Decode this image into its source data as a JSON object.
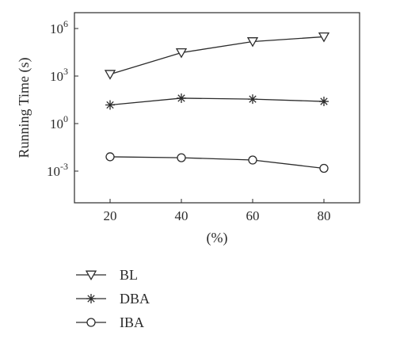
{
  "chart_data": {
    "type": "line",
    "xlabel": "(%)",
    "ylabel": "Running Time (s)",
    "x": [
      20,
      40,
      60,
      80
    ],
    "xticks": [
      "20",
      "40",
      "60",
      "80"
    ],
    "xlim": [
      10,
      90
    ],
    "yscale": "log",
    "ylim": [
      1e-05,
      10000000
    ],
    "yticks": [
      {
        "value": 0.001,
        "base": "10",
        "exp": "-3"
      },
      {
        "value": 1,
        "base": "10",
        "exp": "0"
      },
      {
        "value": 1000,
        "base": "10",
        "exp": "3"
      },
      {
        "value": 1000000,
        "base": "10",
        "exp": "6"
      }
    ],
    "grid": false,
    "legend_position": "bottom-left",
    "series": [
      {
        "name": "BL",
        "marker": "triangle-down",
        "color": "#2b2b2b",
        "values": [
          1300,
          30000,
          150000,
          300000
        ]
      },
      {
        "name": "DBA",
        "marker": "asterisk",
        "color": "#2b2b2b",
        "values": [
          15,
          40,
          35,
          25
        ]
      },
      {
        "name": "IBA",
        "marker": "circle",
        "color": "#2b2b2b",
        "values": [
          0.008,
          0.007,
          0.005,
          0.0015
        ]
      }
    ]
  }
}
